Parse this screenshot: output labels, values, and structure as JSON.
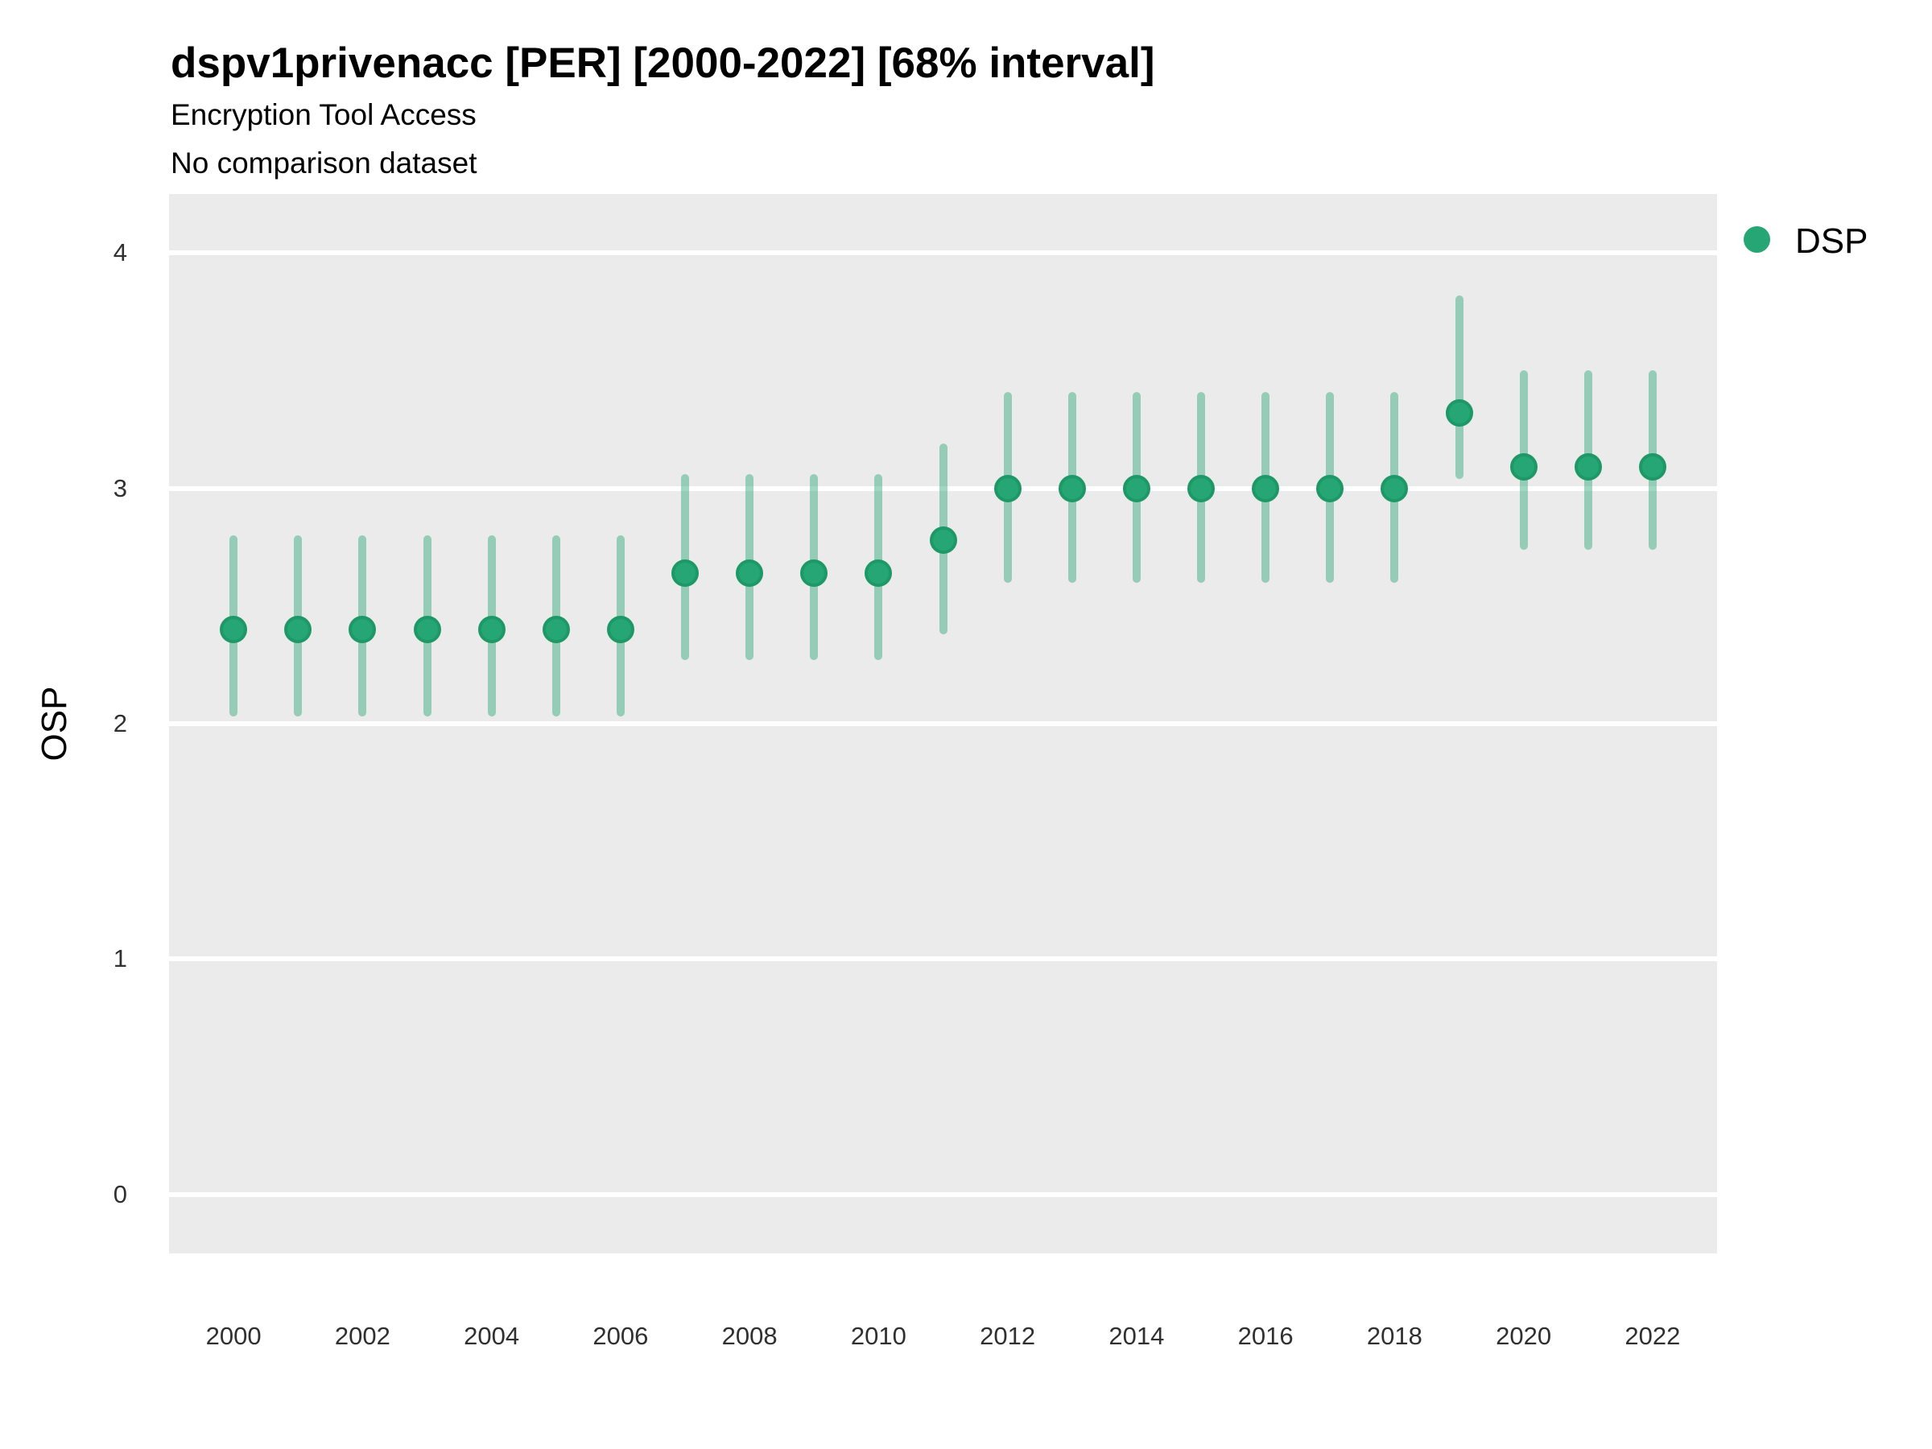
{
  "header": {
    "title": "dspv1privenacc [PER] [2000-2022] [68% interval]",
    "subtitle": "Encryption Tool Access",
    "note": "No comparison dataset"
  },
  "legend": {
    "items": [
      {
        "label": "DSP",
        "color": "#26A674"
      }
    ]
  },
  "axes": {
    "y_title": "OSP",
    "y_tick_labels": [
      "0",
      "1",
      "2",
      "3",
      "4"
    ],
    "x_tick_labels": [
      "2000",
      "2002",
      "2004",
      "2006",
      "2008",
      "2010",
      "2012",
      "2014",
      "2016",
      "2018",
      "2020",
      "2022"
    ]
  },
  "chart_data": {
    "type": "scatter",
    "title": "dspv1privenacc [PER] [2000-2022] [68% interval]",
    "subtitle": "Encryption Tool Access",
    "note": "No comparison dataset",
    "xlabel": "",
    "ylabel": "OSP",
    "interval": "68%",
    "x": [
      2000,
      2001,
      2002,
      2003,
      2004,
      2005,
      2006,
      2007,
      2008,
      2009,
      2010,
      2011,
      2012,
      2013,
      2014,
      2015,
      2016,
      2017,
      2018,
      2019,
      2020,
      2021,
      2022
    ],
    "series": [
      {
        "name": "DSP",
        "values": [
          2.4,
          2.4,
          2.4,
          2.4,
          2.4,
          2.4,
          2.4,
          2.64,
          2.64,
          2.64,
          2.64,
          2.78,
          3.0,
          3.0,
          3.0,
          3.0,
          3.0,
          3.0,
          3.0,
          3.32,
          3.09,
          3.09,
          3.09
        ],
        "ci_low": [
          2.03,
          2.03,
          2.03,
          2.03,
          2.03,
          2.03,
          2.03,
          2.27,
          2.27,
          2.27,
          2.27,
          2.38,
          2.6,
          2.6,
          2.6,
          2.6,
          2.6,
          2.6,
          2.6,
          3.04,
          2.74,
          2.74,
          2.74
        ],
        "ci_high": [
          2.8,
          2.8,
          2.8,
          2.8,
          2.8,
          2.8,
          2.8,
          3.06,
          3.06,
          3.06,
          3.06,
          3.19,
          3.41,
          3.41,
          3.41,
          3.41,
          3.41,
          3.41,
          3.41,
          3.82,
          3.5,
          3.5,
          3.5
        ]
      }
    ],
    "xticks": [
      2000,
      2002,
      2004,
      2006,
      2008,
      2010,
      2012,
      2014,
      2016,
      2018,
      2020,
      2022
    ],
    "yticks": [
      0,
      1,
      2,
      3,
      4
    ],
    "xlim": [
      1999,
      2023
    ],
    "ylim": [
      -0.25,
      4.25
    ],
    "grid": "horizontal-major-only",
    "legend_position": "right-top",
    "colors": {
      "point": "#26A674",
      "point_border": "#1E9866",
      "interval_bar": "rgba(43,167,119,0.45)",
      "panel": "#EBEBEB",
      "gridline": "#FFFFFF"
    }
  }
}
